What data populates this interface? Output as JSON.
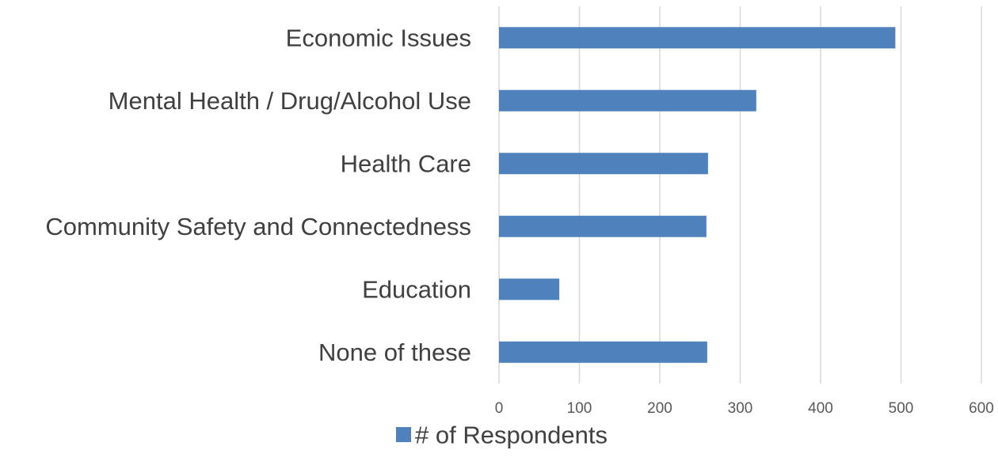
{
  "chart_data": {
    "type": "bar",
    "orientation": "horizontal",
    "title": "",
    "xlabel": "",
    "ylabel": "",
    "categories": [
      "Economic Issues",
      "Mental Health / Drug/Alcohol Use",
      "Health Care",
      "Community Safety and Connectedness",
      "Education",
      "None of these"
    ],
    "series": [
      {
        "name": "# of Respondents",
        "values": [
          493,
          320,
          260,
          258,
          75,
          259
        ],
        "color": "#4f81bd"
      }
    ],
    "xlim": [
      0,
      600
    ],
    "xticks": [
      "0",
      "100",
      "200",
      "300",
      "400",
      "500",
      "600"
    ],
    "grid": true,
    "gridline_color": "#d9d9d9",
    "legend": {
      "position": "bottom",
      "label": "# of Respondents"
    }
  }
}
